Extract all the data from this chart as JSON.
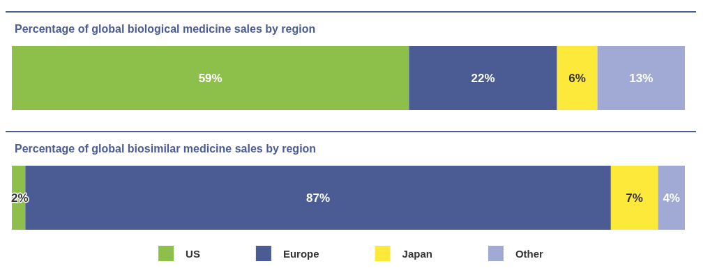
{
  "chart_data": [
    {
      "type": "bar",
      "orientation": "horizontal",
      "stacked": true,
      "title": "Percentage of global biological medicine sales by region",
      "categories": [
        null
      ],
      "tick_labels": false,
      "grid": false,
      "legend": false,
      "series": [
        {
          "color": "#8dc04b",
          "values": [
            59
          ],
          "value_labels": [
            "59%"
          ]
        },
        {
          "color": "#4b5c94",
          "values": [
            22
          ],
          "value_labels": [
            "22%"
          ]
        },
        {
          "color": "#fde93a",
          "values": [
            6
          ],
          "value_labels": [
            "6%"
          ]
        },
        {
          "color": "#a0aad4",
          "values": [
            13
          ],
          "value_labels": [
            "13%"
          ]
        }
      ]
    },
    {
      "type": "bar",
      "orientation": "horizontal",
      "stacked": true,
      "title": "Percentage of global biosimilar medicine sales by region",
      "categories": [
        null
      ],
      "tick_labels": false,
      "grid": false,
      "legend": "bottom",
      "series": [
        {
          "name": "US",
          "color": "#8dc04b",
          "values": [
            2
          ],
          "value_labels": [
            "2%"
          ]
        },
        {
          "name": "Europe",
          "color": "#4b5c94",
          "values": [
            87
          ],
          "value_labels": [
            "87%"
          ]
        },
        {
          "name": "Japan",
          "color": "#fde93a",
          "values": [
            7
          ],
          "value_labels": [
            "7%"
          ]
        },
        {
          "name": "Other",
          "color": "#a0aad4",
          "values": [
            4
          ],
          "value_labels": [
            "4%"
          ]
        }
      ]
    }
  ]
}
